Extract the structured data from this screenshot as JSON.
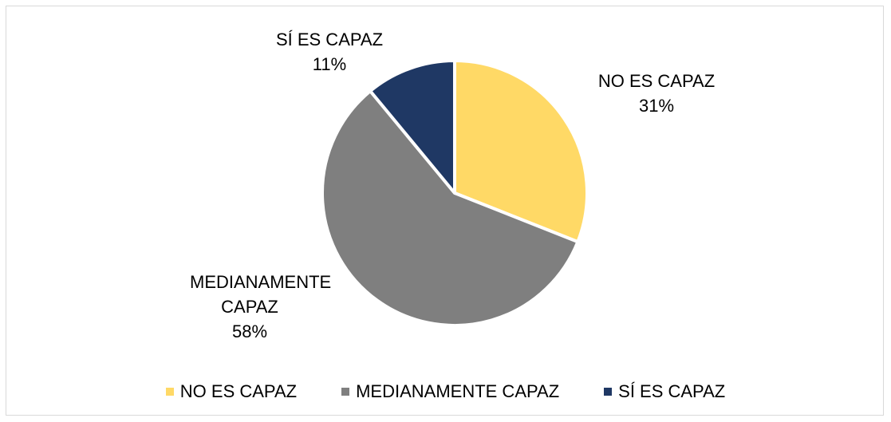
{
  "chart_data": {
    "type": "pie",
    "categories": [
      "NO ES CAPAZ",
      "MEDIANAMENTE CAPAZ",
      "SÍ ES CAPAZ"
    ],
    "values": [
      31,
      58,
      11
    ],
    "value_labels": [
      "31%",
      "58%",
      "11%"
    ],
    "colors": [
      "#ffd966",
      "#7f7f7f",
      "#1f3864"
    ],
    "legend": "bottom"
  }
}
